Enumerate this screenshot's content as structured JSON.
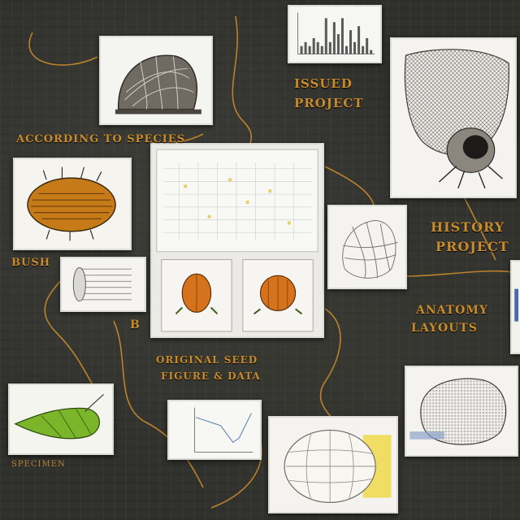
{
  "labels": {
    "top_right_1": "ISSUED",
    "top_right_2": "PROJECT",
    "left_header": "ACCORDING TO SPECIES",
    "left_mid": "BUSH",
    "right_mid_1": "HISTORY",
    "right_mid_2": "PROJECT",
    "right_lower_1": "ANATOMY",
    "right_lower_2": "LAYOUTS",
    "center_caption_1": "ORIGINAL SEED",
    "center_caption_2": "FIGURE & DATA",
    "bottom_left": "SPECIMEN",
    "side_tag": "B"
  },
  "colors": {
    "wire": "#c98b2b",
    "accent_orange": "#d6721c",
    "accent_green": "#7bb52a",
    "accent_yellow": "#f0d84a"
  },
  "chart_data": [
    {
      "type": "bar",
      "title": "",
      "values": [
        2,
        3,
        2,
        4,
        3,
        2,
        9,
        3,
        8,
        5,
        9,
        2,
        6,
        3,
        7,
        2,
        4,
        1
      ],
      "xlabel": "",
      "ylabel": "",
      "ylim": [
        0,
        10
      ]
    },
    {
      "type": "line",
      "title": "",
      "x": [
        0,
        1,
        2,
        3,
        4,
        5,
        6,
        7,
        8,
        9
      ],
      "values": [
        8,
        7.5,
        7,
        6.5,
        6,
        4,
        2,
        3,
        6,
        9
      ],
      "xlabel": "",
      "ylabel": "",
      "ylim": [
        0,
        10
      ]
    }
  ]
}
